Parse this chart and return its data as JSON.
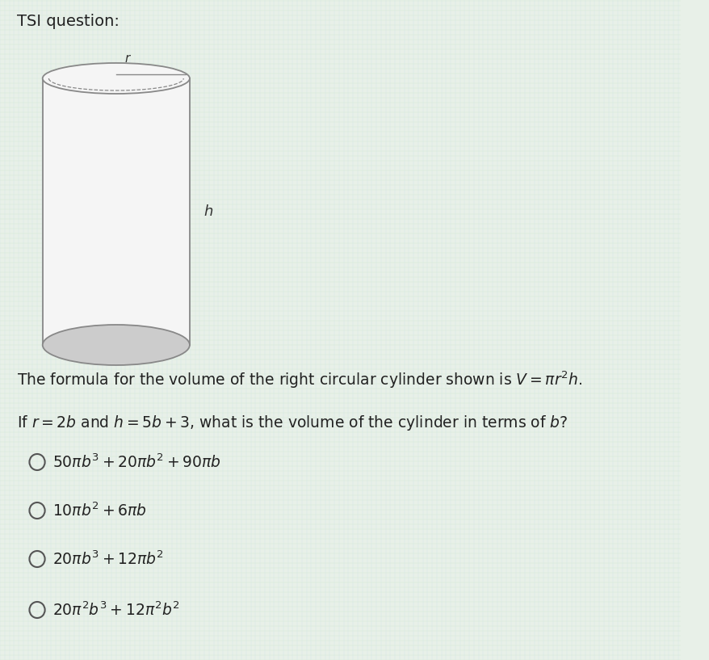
{
  "title": "TSI question:",
  "background_color": "#ddeeff",
  "bg_color_avg": "#d4e8d8",
  "text_color": "#222222",
  "formula_line": "The formula for the volume of the right circular cylinder shown is $V = \\pi r^2h$.",
  "question_line": "If $r = 2b$ and $h = 5b + 3$, what is the volume of the cylinder in terms of $b$?",
  "options": [
    "$50\\pi b^3 + 20\\pi b^2 + 90\\pi b$",
    "$10\\pi b^2 + 6\\pi b$",
    "$20\\pi b^3 + 12\\pi b^2$",
    "$20\\pi^2 b^3 + 12\\pi^2 b^2$"
  ],
  "cylinder_color": "#f5f5f5",
  "cylinder_edge_color": "#888888",
  "cylinder_bottom_color": "#cccccc"
}
